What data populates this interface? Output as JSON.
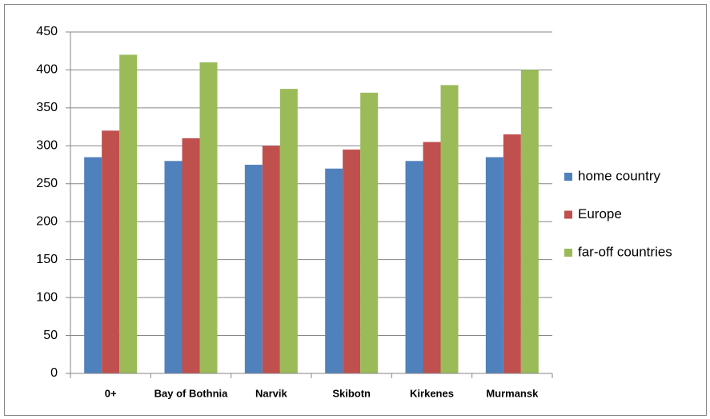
{
  "chart_data": {
    "type": "bar",
    "categories": [
      "0+",
      "Bay of Bothnia",
      "Narvik",
      "Skibotn",
      "Kirkenes",
      "Murmansk"
    ],
    "series": [
      {
        "name": "home country",
        "color": "#4f81bd",
        "values": [
          285,
          280,
          275,
          270,
          280,
          285
        ]
      },
      {
        "name": "Europe",
        "color": "#c0504d",
        "values": [
          320,
          310,
          300,
          295,
          305,
          315
        ]
      },
      {
        "name": "far-off countries",
        "color": "#9bbb59",
        "values": [
          420,
          410,
          375,
          370,
          380,
          400
        ]
      }
    ],
    "ylim": [
      0,
      450
    ],
    "yticks": [
      0,
      50,
      100,
      150,
      200,
      250,
      300,
      350,
      400,
      450
    ],
    "grid": true,
    "legend": "right"
  }
}
